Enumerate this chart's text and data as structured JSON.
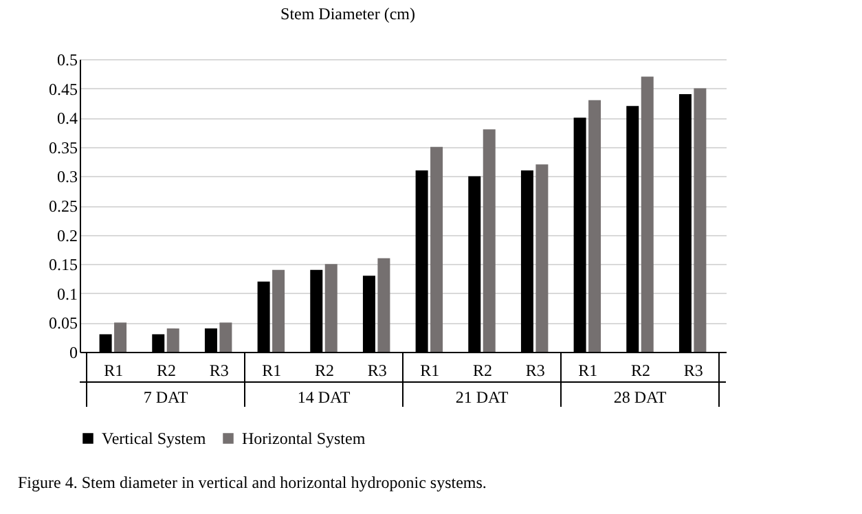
{
  "chart_data": {
    "type": "bar",
    "title": "Stem Diameter (cm)",
    "categories": [
      "R1",
      "R2",
      "R3",
      "R1",
      "R2",
      "R3",
      "R1",
      "R2",
      "R3",
      "R1",
      "R2",
      "R3"
    ],
    "series": [
      {
        "name": "Vertical System",
        "color": "#000000",
        "values": [
          0.03,
          0.03,
          0.04,
          0.12,
          0.14,
          0.13,
          0.31,
          0.3,
          0.31,
          0.4,
          0.42,
          0.44
        ]
      },
      {
        "name": "Horizontal System",
        "color": "#757070",
        "values": [
          0.05,
          0.04,
          0.05,
          0.14,
          0.15,
          0.16,
          0.35,
          0.38,
          0.32,
          0.43,
          0.47,
          0.45
        ]
      }
    ],
    "ylim": [
      0,
      0.5
    ],
    "yticks": [
      0,
      0.05,
      0.1,
      0.15,
      0.2,
      0.25,
      0.3,
      0.35,
      0.4,
      0.45,
      0.5
    ],
    "grid": "y",
    "legend": "bottom",
    "annotations": [
      "7 DAT",
      "14 DAT",
      "21 DAT",
      "28 DAT",
      "Figure 4. Stem diameter in vertical and horizontal hydroponic systems."
    ]
  }
}
